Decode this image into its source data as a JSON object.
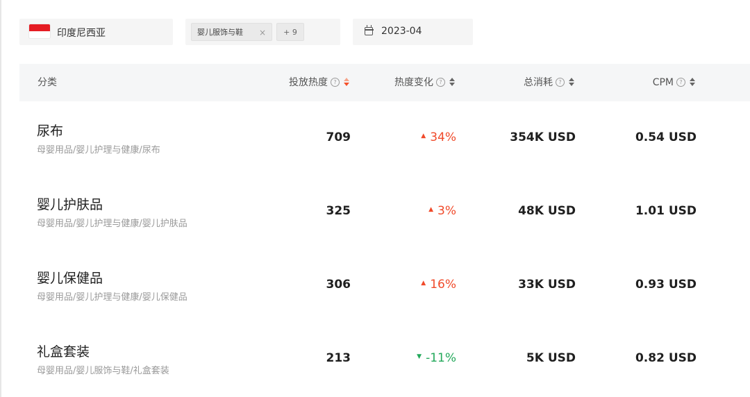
{
  "filters": {
    "country": {
      "label": "印度尼西亚",
      "flag_colors": [
        "#e51c23",
        "#ffffff"
      ]
    },
    "category": {
      "tags": [
        "婴儿服饰与鞋"
      ],
      "more": "+ 9",
      "close_glyph": "×"
    },
    "date": {
      "value": "2023-04",
      "icon": "calendar-icon"
    }
  },
  "table": {
    "headers": {
      "category": "分类",
      "hotness": "投放热度",
      "change": "热度变化",
      "total_cost": "总消耗",
      "cpm": "CPM",
      "help_glyph": "?"
    },
    "rows": [
      {
        "name": "尿布",
        "path": "母婴用品/婴儿护理与健康/尿布",
        "hotness": "709",
        "change": "34%",
        "trend": "up",
        "total_cost": "354K USD",
        "cpm": "0.54 USD"
      },
      {
        "name": "婴儿护肤品",
        "path": "母婴用品/婴儿护理与健康/婴儿护肤品",
        "hotness": "325",
        "change": "3%",
        "trend": "up",
        "total_cost": "48K USD",
        "cpm": "1.01 USD"
      },
      {
        "name": "婴儿保健品",
        "path": "母婴用品/婴儿护理与健康/婴儿保健品",
        "hotness": "306",
        "change": "16%",
        "trend": "up",
        "total_cost": "33K USD",
        "cpm": "0.93 USD"
      },
      {
        "name": "礼盒套装",
        "path": "母婴用品/婴儿服饰与鞋/礼盒套装",
        "hotness": "213",
        "change": "-11%",
        "trend": "down",
        "total_cost": "5K USD",
        "cpm": "0.82 USD"
      }
    ]
  },
  "colors": {
    "up": "#f04a2a",
    "down": "#22a85a",
    "header_bg": "#f5f6f7",
    "filter_bg": "#f5f5f5"
  }
}
